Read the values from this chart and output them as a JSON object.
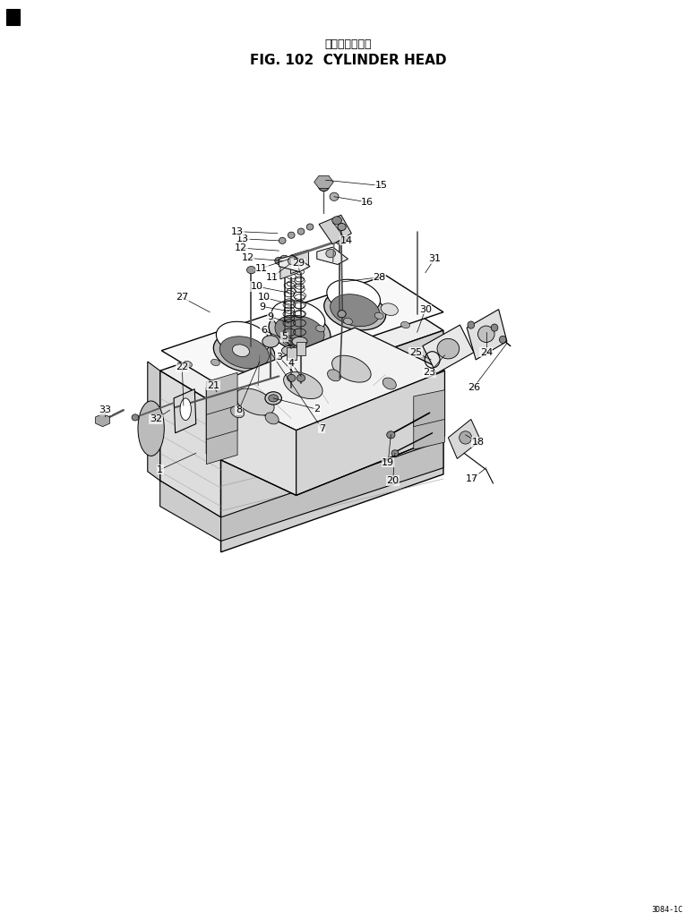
{
  "title_jp": "シリンダヘッド",
  "title_en": "FIG. 102  CYLINDER HEAD",
  "bg_color": "#ffffff",
  "fig_width": 7.77,
  "fig_height": 10.29,
  "dpi": 100,
  "bottom_right_text": "3D84-1C"
}
